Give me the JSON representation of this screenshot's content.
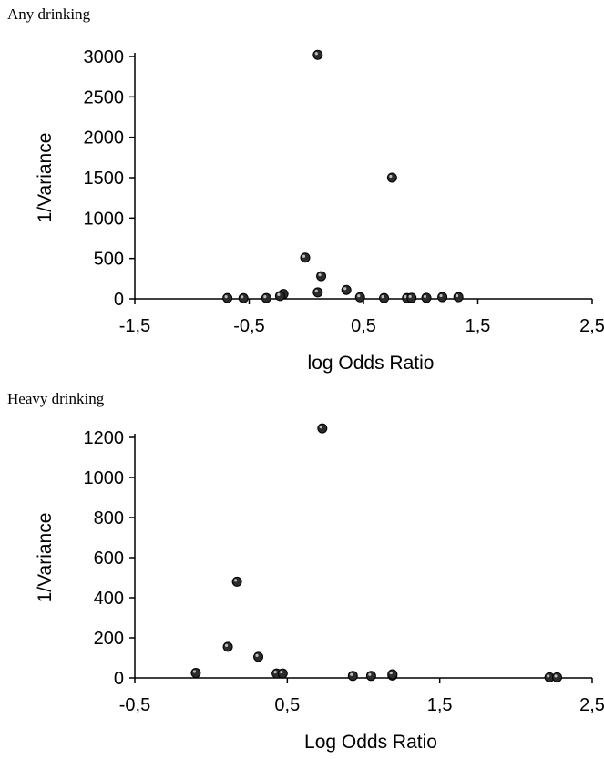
{
  "chart_data": [
    {
      "type": "scatter",
      "title": "Any drinking",
      "xlabel": "log Odds Ratio",
      "ylabel": "1/Variance",
      "xlim": [
        -1.5,
        2.5
      ],
      "ylim": [
        0,
        3000
      ],
      "xticks": [
        -1.5,
        -0.5,
        0.5,
        1.5,
        2.5
      ],
      "xtick_labels": [
        "-1,5",
        "-0,5",
        "0,5",
        "1,5",
        "2,5"
      ],
      "yticks": [
        0,
        500,
        1000,
        1500,
        2000,
        2500,
        3000
      ],
      "ytick_labels": [
        "0",
        "500",
        "1000",
        "1500",
        "2000",
        "2500",
        "3000"
      ],
      "grid": false,
      "points": [
        {
          "x": 0.1,
          "y": 3020
        },
        {
          "x": 0.75,
          "y": 1500
        },
        {
          "x": -0.01,
          "y": 510
        },
        {
          "x": 0.13,
          "y": 280
        },
        {
          "x": 0.1,
          "y": 80
        },
        {
          "x": 0.35,
          "y": 110
        },
        {
          "x": -0.2,
          "y": 60
        },
        {
          "x": -0.23,
          "y": 35
        },
        {
          "x": -0.35,
          "y": 10
        },
        {
          "x": -0.69,
          "y": 10
        },
        {
          "x": -0.55,
          "y": 8
        },
        {
          "x": 0.47,
          "y": 20
        },
        {
          "x": 0.68,
          "y": 10
        },
        {
          "x": 0.88,
          "y": 10
        },
        {
          "x": 0.92,
          "y": 12
        },
        {
          "x": 1.05,
          "y": 12
        },
        {
          "x": 1.19,
          "y": 22
        },
        {
          "x": 1.33,
          "y": 22
        }
      ]
    },
    {
      "type": "scatter",
      "title": "Heavy drinking",
      "xlabel": "Log Odds Ratio",
      "ylabel": "1/Variance",
      "xlim": [
        -0.5,
        2.5
      ],
      "ylim": [
        0,
        1200
      ],
      "xticks": [
        -0.5,
        0.5,
        1.5,
        2.5
      ],
      "xtick_labels": [
        "-0,5",
        "0,5",
        "1,5",
        "2,5"
      ],
      "yticks": [
        0,
        200,
        400,
        600,
        800,
        1000,
        1200
      ],
      "ytick_labels": [
        "0",
        "200",
        "400",
        "600",
        "800",
        "1000",
        "1200"
      ],
      "grid": false,
      "points": [
        {
          "x": 0.73,
          "y": 1245
        },
        {
          "x": 0.17,
          "y": 480
        },
        {
          "x": 0.11,
          "y": 155
        },
        {
          "x": 0.31,
          "y": 105
        },
        {
          "x": -0.1,
          "y": 25
        },
        {
          "x": 0.43,
          "y": 22
        },
        {
          "x": 0.47,
          "y": 22
        },
        {
          "x": 0.93,
          "y": 10
        },
        {
          "x": 1.05,
          "y": 10
        },
        {
          "x": 1.19,
          "y": 12
        },
        {
          "x": 1.19,
          "y": 18
        },
        {
          "x": 2.22,
          "y": 3
        },
        {
          "x": 2.27,
          "y": 3
        }
      ]
    }
  ]
}
